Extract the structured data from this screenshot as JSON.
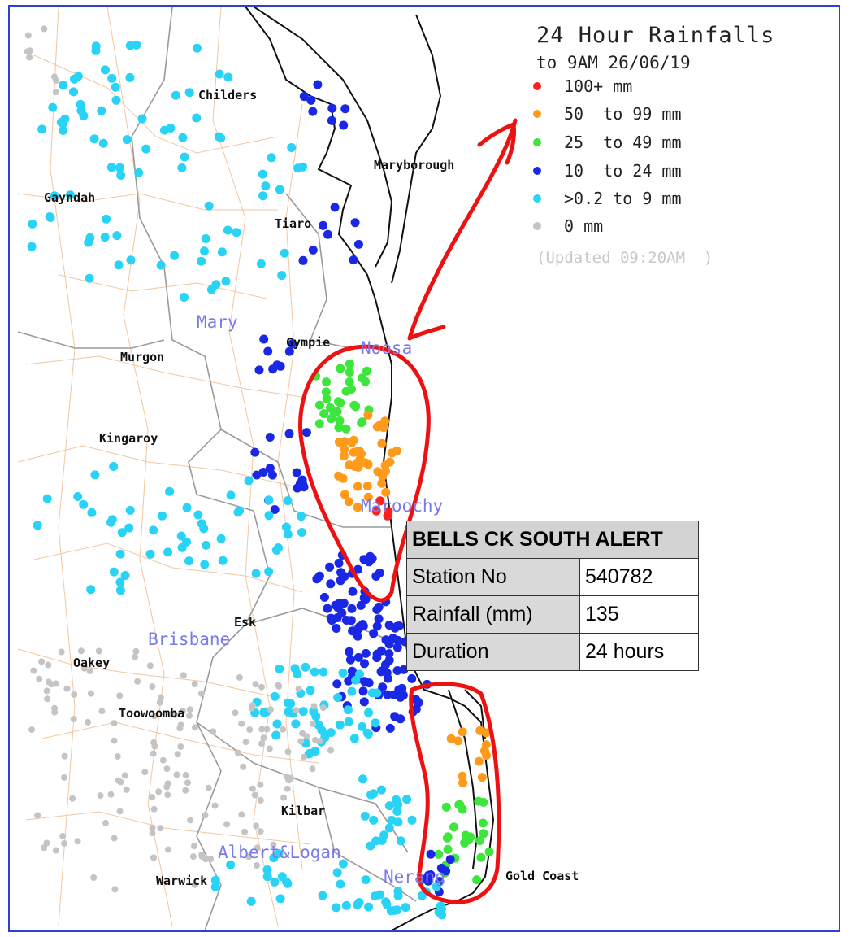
{
  "legend": {
    "title": "24 Hour Rainfalls",
    "subtitle": "to 9AM 26/06/19",
    "items": [
      {
        "label": "100+ mm",
        "color": "#ff1f1f"
      },
      {
        "label": "50  to 99 mm",
        "color": "#ff9a1a"
      },
      {
        "label": "25  to 49 mm",
        "color": "#3ce63c"
      },
      {
        "label": "10  to 24 mm",
        "color": "#1a28e6"
      },
      {
        "label": ">0.2 to 9 mm",
        "color": "#29d3f5"
      },
      {
        "label": "0 mm",
        "color": "#c4c4c4"
      }
    ],
    "updated": "(Updated 09:20AM  )"
  },
  "places": {
    "childers": "Childers",
    "maryborough": "Maryborough",
    "gayndah": "Gayndah",
    "tiaro": "Tiaro",
    "gympie": "Gympie",
    "murgon": "Murgon",
    "kingaroy": "Kingaroy",
    "esk": "Esk",
    "oakey": "Oakey",
    "toowoomba": "Toowoomba",
    "kilbar": "Kilbar",
    "warwick": "Warwick",
    "gold_coast": "Gold Coast"
  },
  "basins": {
    "mary": "Mary",
    "noosa": "Noosa",
    "maroochy": "Maroochy",
    "brisbane": "Brisbane",
    "albert_logan": "Albert&Logan",
    "nerang": "Nerang"
  },
  "popup": {
    "station_name": "BELLS CK SOUTH ALERT",
    "station_no_label": "Station No",
    "station_no": "540782",
    "rainfall_label": "Rainfall (mm)",
    "rainfall": "135",
    "duration_label": "Duration",
    "duration": "24 hours"
  },
  "annotation": {
    "color": "#ee1111"
  }
}
